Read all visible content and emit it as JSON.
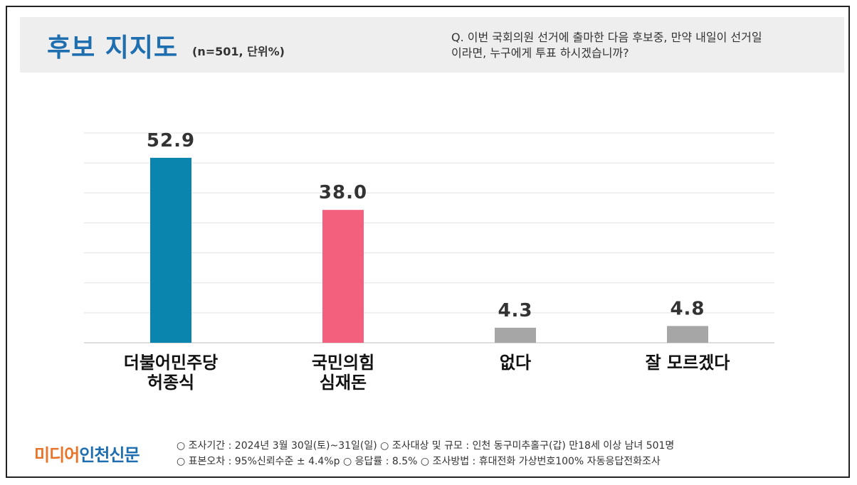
{
  "header": {
    "title": "후보 지지도",
    "subtitle": "(n=501, 단위%)",
    "question_line1": "Q. 이번 국회의원 선거에 출마한 다음 후보중, 만약 내일이 선거일",
    "question_line2": "이라면, 누구에게 투표 하시겠습니까?"
  },
  "chart_data": {
    "type": "bar",
    "categories": [
      [
        "더불어민주당",
        "허종식"
      ],
      [
        "국민의힘",
        "심재돈"
      ],
      [
        "없다"
      ],
      [
        "잘 모르겠다"
      ]
    ],
    "values": [
      52.9,
      38.0,
      4.3,
      4.8
    ],
    "value_labels": [
      "52.9",
      "38.0",
      "4.3",
      "4.8"
    ],
    "colors": [
      "#0a85ad",
      "#f2607e",
      "#a6a6a6",
      "#a6a6a6"
    ],
    "ylim": [
      0,
      60
    ],
    "grid": true
  },
  "footer": {
    "logo_part1": "미디어",
    "logo_part2": "인천신문",
    "line1": "○ 조사기간 : 2024년 3월 30일(토)~31일(일)   ○ 조사대상 및 규모 : 인천 동구미추홀구(갑) 만18세 이상 남녀  501명",
    "line2": "○ 표본오차 : 95%신뢰수준 ± 4.4%p   ○ 응답률 : 8.5%  ○ 조사방법 : 휴대전화 가상번호100% 자동응답전화조사"
  }
}
